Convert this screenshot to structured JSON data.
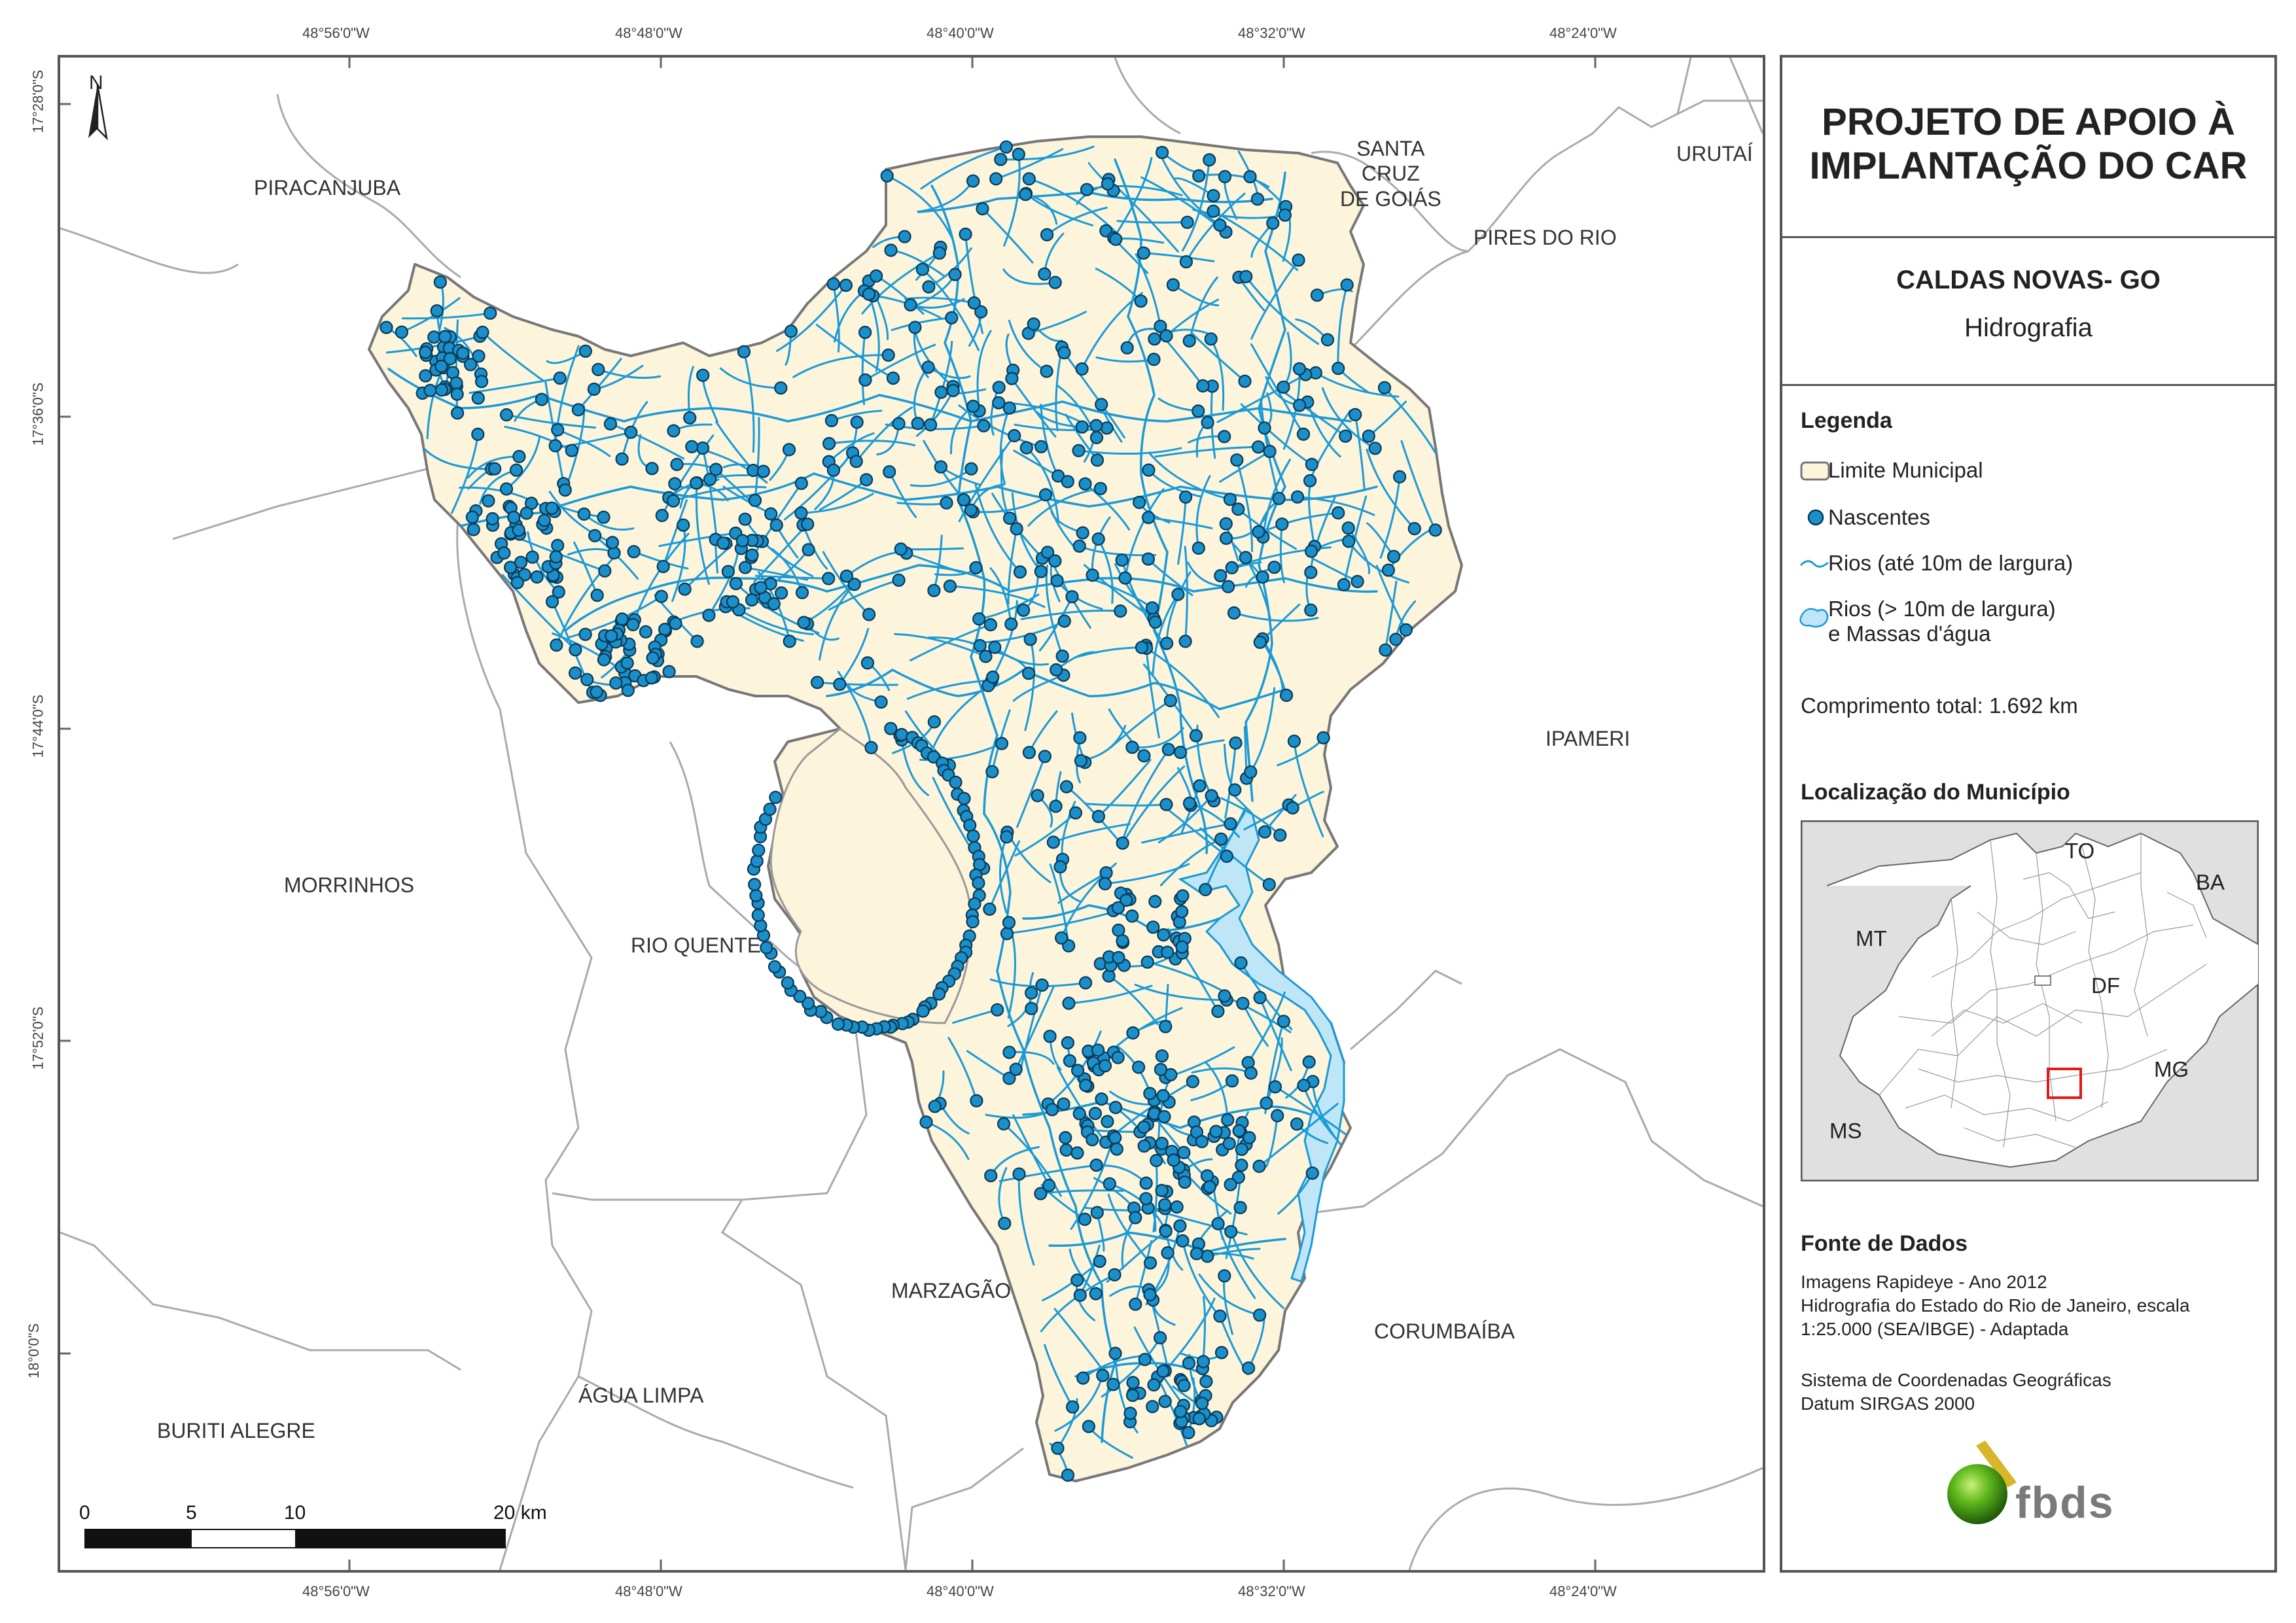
{
  "title": "PROJETO DE APOIO À IMPLANTAÇÃO DO CAR",
  "title_line1": "PROJETO DE APOIO À",
  "title_line2": "IMPLANTAÇÃO DO CAR",
  "municipality": "CALDAS NOVAS- GO",
  "theme": "Hidrografia",
  "legend": {
    "heading": "Legenda",
    "items": [
      {
        "label": "Limite Municipal",
        "icon": "municipal-boundary-icon"
      },
      {
        "label": "Nascentes",
        "icon": "spring-point-icon"
      },
      {
        "label": "Rios (até 10m de largura)",
        "icon": "small-river-line-icon"
      },
      {
        "label": "Rios (> 10m de largura)",
        "label2": "e Massas d'água",
        "icon": "large-river-water-body-icon"
      }
    ],
    "total_length": "Comprimento total: 1.692 km"
  },
  "location": {
    "heading": "Localização do Município",
    "labels": {
      "TO": "TO",
      "BA": "BA",
      "MT": "MT",
      "DF": "DF",
      "MG": "MG",
      "MS": "MS"
    }
  },
  "sources": {
    "heading": "Fonte de Dados",
    "line1": "Imagens Rapideye - Ano 2012",
    "line2": "Hidrografia do Estado do Rio de Janeiro, escala",
    "line3": "1:25.000 (SEA/IBGE) - Adaptada",
    "line4": "Sistema de Coordenadas Geográficas",
    "line5": "Datum SIRGAS 2000"
  },
  "logo_text": "fbds",
  "coords": {
    "lon": [
      "48°56'0\"W",
      "48°48'0\"W",
      "48°40'0\"W",
      "48°32'0\"W",
      "48°24'0\"W"
    ],
    "lat": [
      "17°28'0\"S",
      "17°36'0\"S",
      "17°44'0\"S",
      "17°52'0\"S",
      "18°0'0\"S"
    ]
  },
  "north": "N",
  "scale": {
    "labels": [
      "0",
      "5",
      "10",
      "20 km"
    ]
  },
  "municipalities": {
    "piracanjuba": "PIRACANJUBA",
    "santa_cruz_1": "SANTA",
    "santa_cruz_2": "CRUZ",
    "santa_cruz_3": "DE GOIÁS",
    "urutai": "URUTAÍ",
    "pires_do_rio": "PIRES DO RIO",
    "ipameri": "IPAMERI",
    "morrinhos": "MORRINHOS",
    "rio_quente": "RIO QUENTE",
    "marzagao": "MARZAGÃO",
    "corumbaiba": "CORUMBAÍBA",
    "agua_limpa": "ÁGUA LIMPA",
    "buriti_alegre": "BURITI ALEGRE"
  },
  "colors": {
    "municipio_fill": "#fdf4dc",
    "river": "#1a9ad6",
    "spring": "#1b8fc9",
    "water_body": "#bfe6f7",
    "boundary": "#777777",
    "neighbor_lines": "#aaaaaa",
    "highlight": "#e31a1c"
  }
}
